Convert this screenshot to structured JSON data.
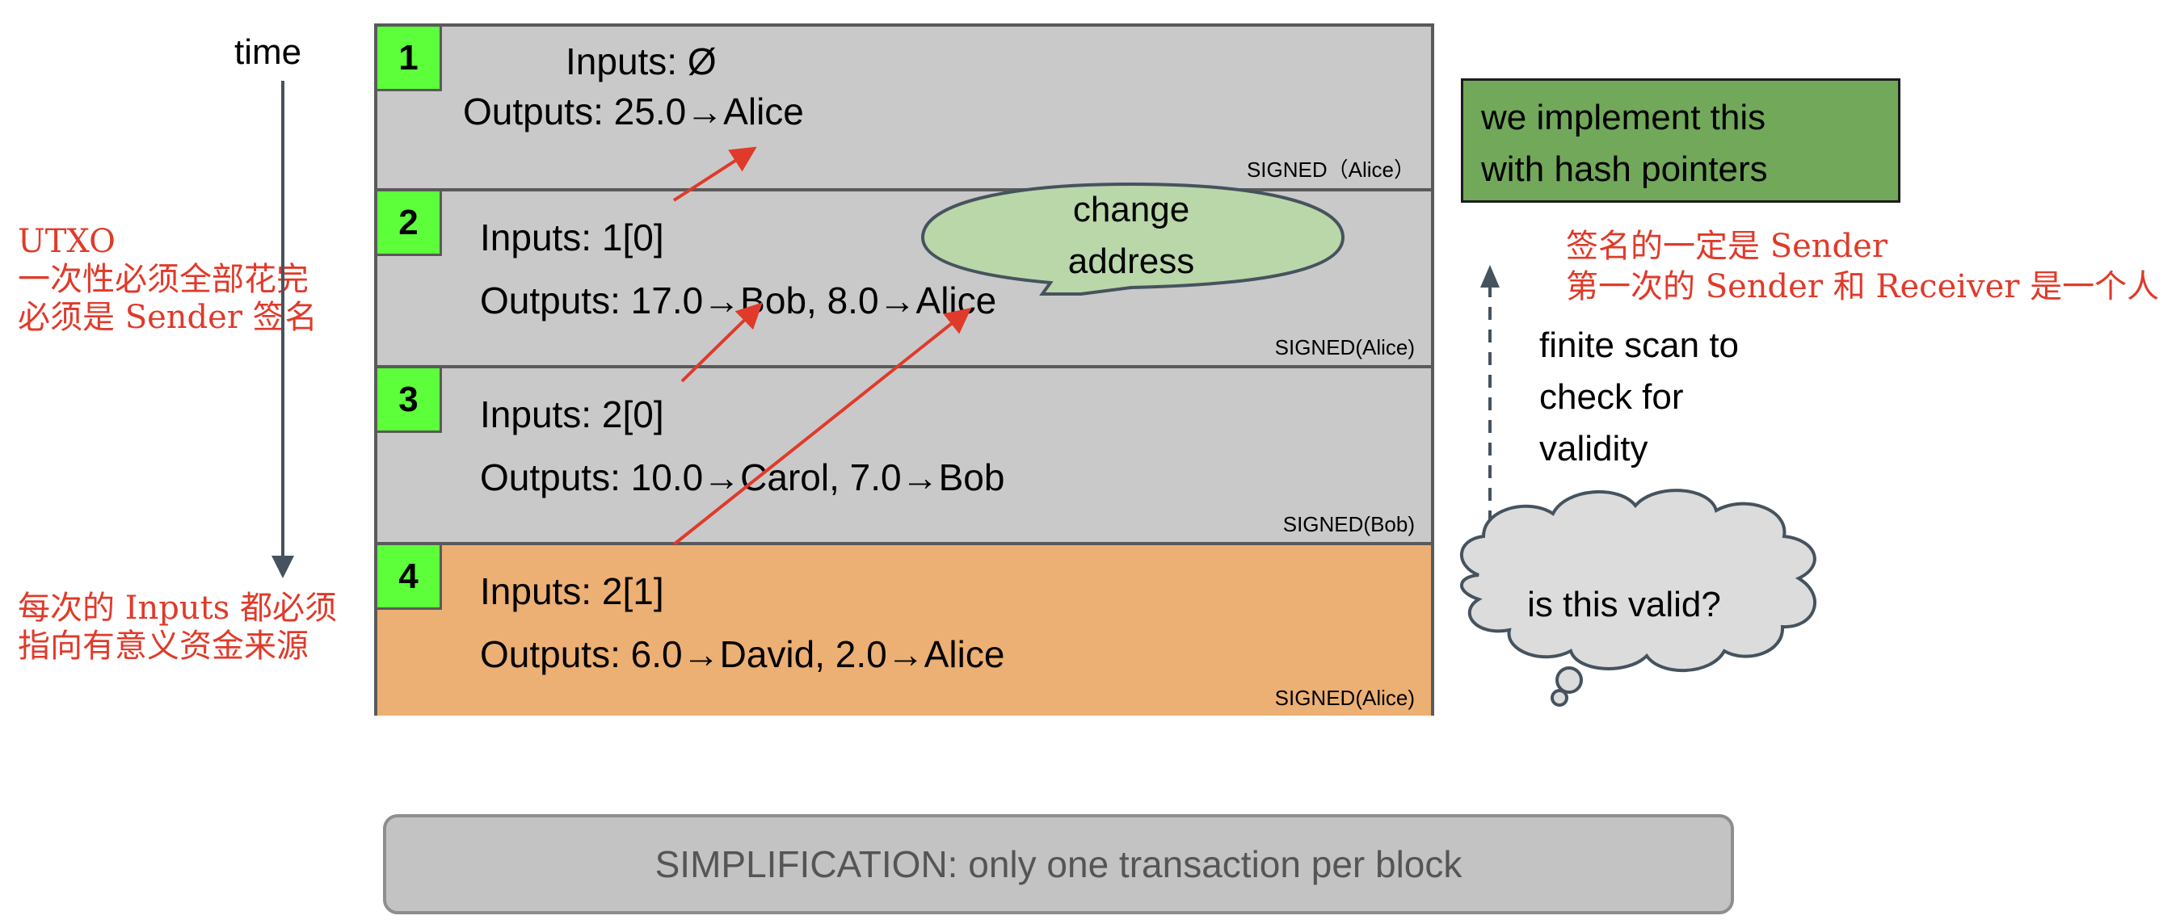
{
  "time_label": "time",
  "blocks": [
    {
      "num": "1",
      "inputs": "Inputs: Ø",
      "outputs": "Outputs: 25.0→Alice",
      "signed": "SIGNED（Alice）"
    },
    {
      "num": "2",
      "inputs": "Inputs: 1[0]",
      "outputs": "Outputs: 17.0→Bob, 8.0→Alice",
      "signed": "SIGNED(Alice)"
    },
    {
      "num": "3",
      "inputs": "Inputs: 2[0]",
      "outputs": "Outputs: 10.0→Carol, 7.0→Bob",
      "signed": "SIGNED(Bob)"
    },
    {
      "num": "4",
      "inputs": "Inputs: 2[1]",
      "outputs": "Outputs: 6.0→David, 2.0→Alice",
      "signed": "SIGNED(Alice)"
    }
  ],
  "speech_bubble": {
    "line1": "change",
    "line2": "address"
  },
  "hash_box": {
    "line1": "we implement this",
    "line2": "with hash pointers"
  },
  "annotations": {
    "left_top": [
      "UTXO",
      "一次性必须全部花完",
      "必须是 Sender 签名"
    ],
    "left_bottom": [
      "每次的 Inputs 都必须",
      "指向有意义资金来源"
    ],
    "right": [
      "签名的一定是 Sender",
      "第一次的 Sender 和 Receiver 是一个人"
    ]
  },
  "finite_scan": [
    "finite scan to",
    "check for",
    "validity"
  ],
  "thought_cloud": "is this valid?",
  "simplification": "SIMPLIFICATION: only one transaction per block",
  "colors": {
    "block_gray": "#c9c9c9",
    "block_orange": "#ecb074",
    "number_green": "#5cff3a",
    "hash_green": "#72a85a",
    "annotation_red": "#e03a2a",
    "bubble_green": "#b9d7a8"
  }
}
